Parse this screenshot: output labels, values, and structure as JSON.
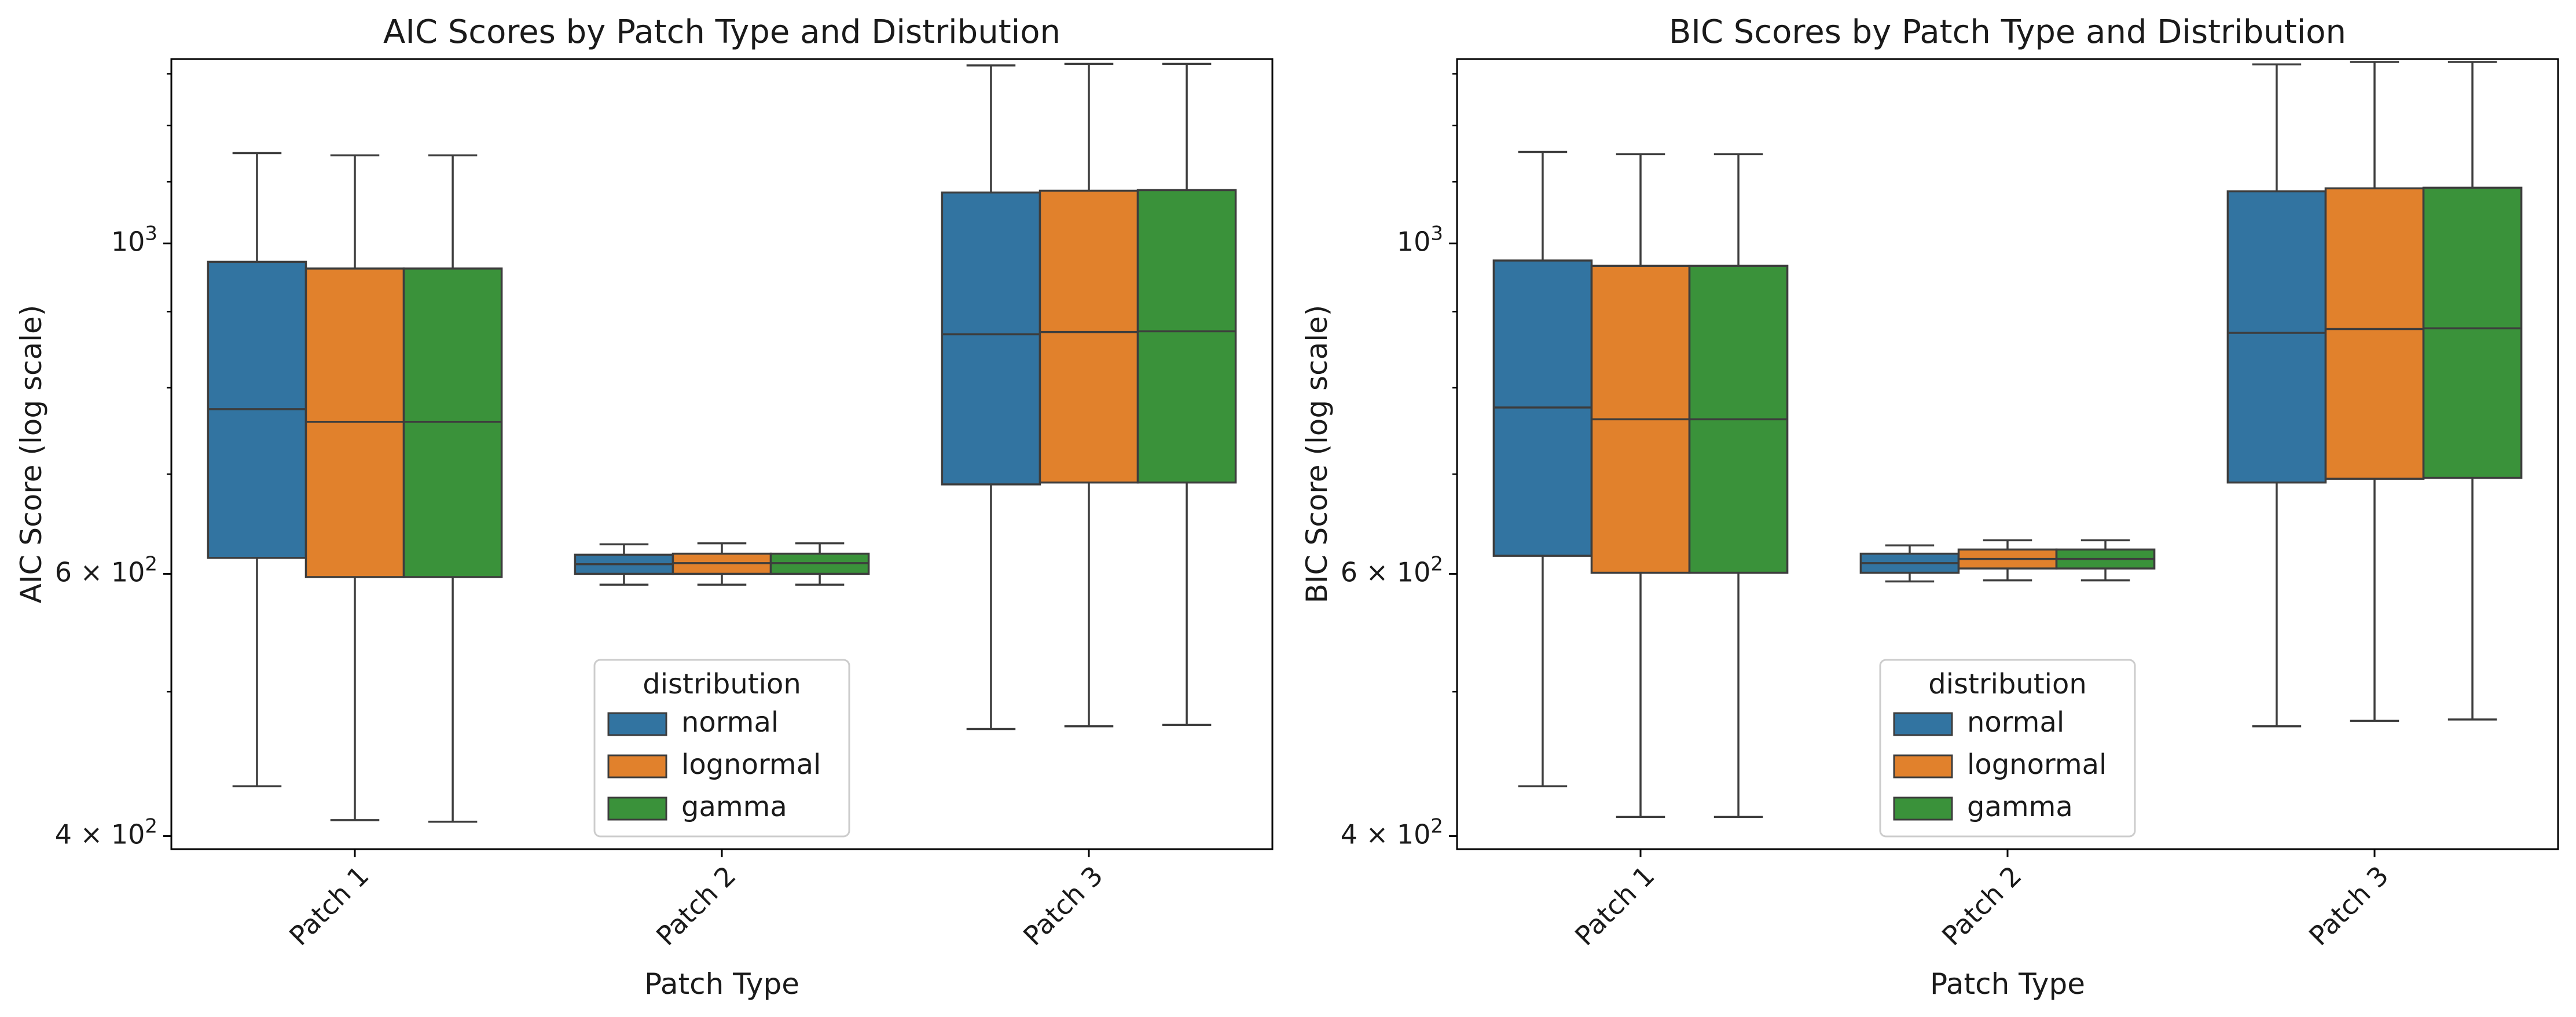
{
  "colors": {
    "normal": "#3274a1",
    "lognormal": "#e1812c",
    "gamma": "#3a923a",
    "outline": "#3d3d3d",
    "frame": "#000000"
  },
  "chart_data": [
    {
      "type": "box",
      "title": "AIC Scores by Patch Type and Distribution",
      "xlabel": "Patch Type",
      "ylabel": "AIC Score (log scale)",
      "yscale": "log",
      "ylim": [
        392,
        1330
      ],
      "yticks": [
        {
          "value": 400,
          "label": "4 × 10²"
        },
        {
          "value": 600,
          "label": "6 × 10²"
        },
        {
          "value": 1000,
          "label": "10³"
        }
      ],
      "categories": [
        "Patch 1",
        "Patch 2",
        "Patch 3"
      ],
      "legend": {
        "title": "distribution",
        "position": "lower center"
      },
      "grid": false,
      "series": [
        {
          "name": "normal",
          "boxes": [
            {
              "whislo": 432,
              "q1": 615,
              "med": 774,
              "q3": 972,
              "whishi": 1150
            },
            {
              "whislo": 590,
              "q1": 600,
              "med": 609,
              "q3": 618,
              "whishi": 628
            },
            {
              "whislo": 472,
              "q1": 689,
              "med": 869,
              "q3": 1082,
              "whishi": 1317
            }
          ]
        },
        {
          "name": "lognormal",
          "boxes": [
            {
              "whislo": 410,
              "q1": 597,
              "med": 759,
              "q3": 962,
              "whishi": 1146
            },
            {
              "whislo": 590,
              "q1": 600,
              "med": 610,
              "q3": 619,
              "whishi": 629
            },
            {
              "whislo": 474,
              "q1": 691,
              "med": 872,
              "q3": 1085,
              "whishi": 1320
            }
          ]
        },
        {
          "name": "gamma",
          "boxes": [
            {
              "whislo": 409,
              "q1": 597,
              "med": 759,
              "q3": 962,
              "whishi": 1146
            },
            {
              "whislo": 590,
              "q1": 600,
              "med": 610,
              "q3": 619,
              "whishi": 629
            },
            {
              "whislo": 475,
              "q1": 691,
              "med": 873,
              "q3": 1086,
              "whishi": 1320
            }
          ]
        }
      ]
    },
    {
      "type": "box",
      "title": "BIC Scores by Patch Type and Distribution",
      "xlabel": "Patch Type",
      "ylabel": "BIC Score (log scale)",
      "yscale": "log",
      "ylim": [
        392,
        1330
      ],
      "yticks": [
        {
          "value": 400,
          "label": "4 × 10²"
        },
        {
          "value": 600,
          "label": "6 × 10²"
        },
        {
          "value": 1000,
          "label": "10³"
        }
      ],
      "categories": [
        "Patch 1",
        "Patch 2",
        "Patch 3"
      ],
      "legend": {
        "title": "distribution",
        "position": "lower center"
      },
      "grid": false,
      "series": [
        {
          "name": "normal",
          "boxes": [
            {
              "whislo": 432,
              "q1": 617,
              "med": 776,
              "q3": 974,
              "whishi": 1152
            },
            {
              "whislo": 593,
              "q1": 601,
              "med": 610,
              "q3": 619,
              "whishi": 627
            },
            {
              "whislo": 474,
              "q1": 691,
              "med": 871,
              "q3": 1084,
              "whishi": 1319
            }
          ]
        },
        {
          "name": "lognormal",
          "boxes": [
            {
              "whislo": 412,
              "q1": 601,
              "med": 762,
              "q3": 966,
              "whishi": 1148
            },
            {
              "whislo": 594,
              "q1": 605,
              "med": 614,
              "q3": 623,
              "whishi": 632
            },
            {
              "whislo": 478,
              "q1": 695,
              "med": 876,
              "q3": 1089,
              "whishi": 1324
            }
          ]
        },
        {
          "name": "gamma",
          "boxes": [
            {
              "whislo": 412,
              "q1": 601,
              "med": 762,
              "q3": 966,
              "whishi": 1148
            },
            {
              "whislo": 594,
              "q1": 605,
              "med": 614,
              "q3": 623,
              "whishi": 632
            },
            {
              "whislo": 479,
              "q1": 696,
              "med": 877,
              "q3": 1090,
              "whishi": 1324
            }
          ]
        }
      ]
    }
  ]
}
